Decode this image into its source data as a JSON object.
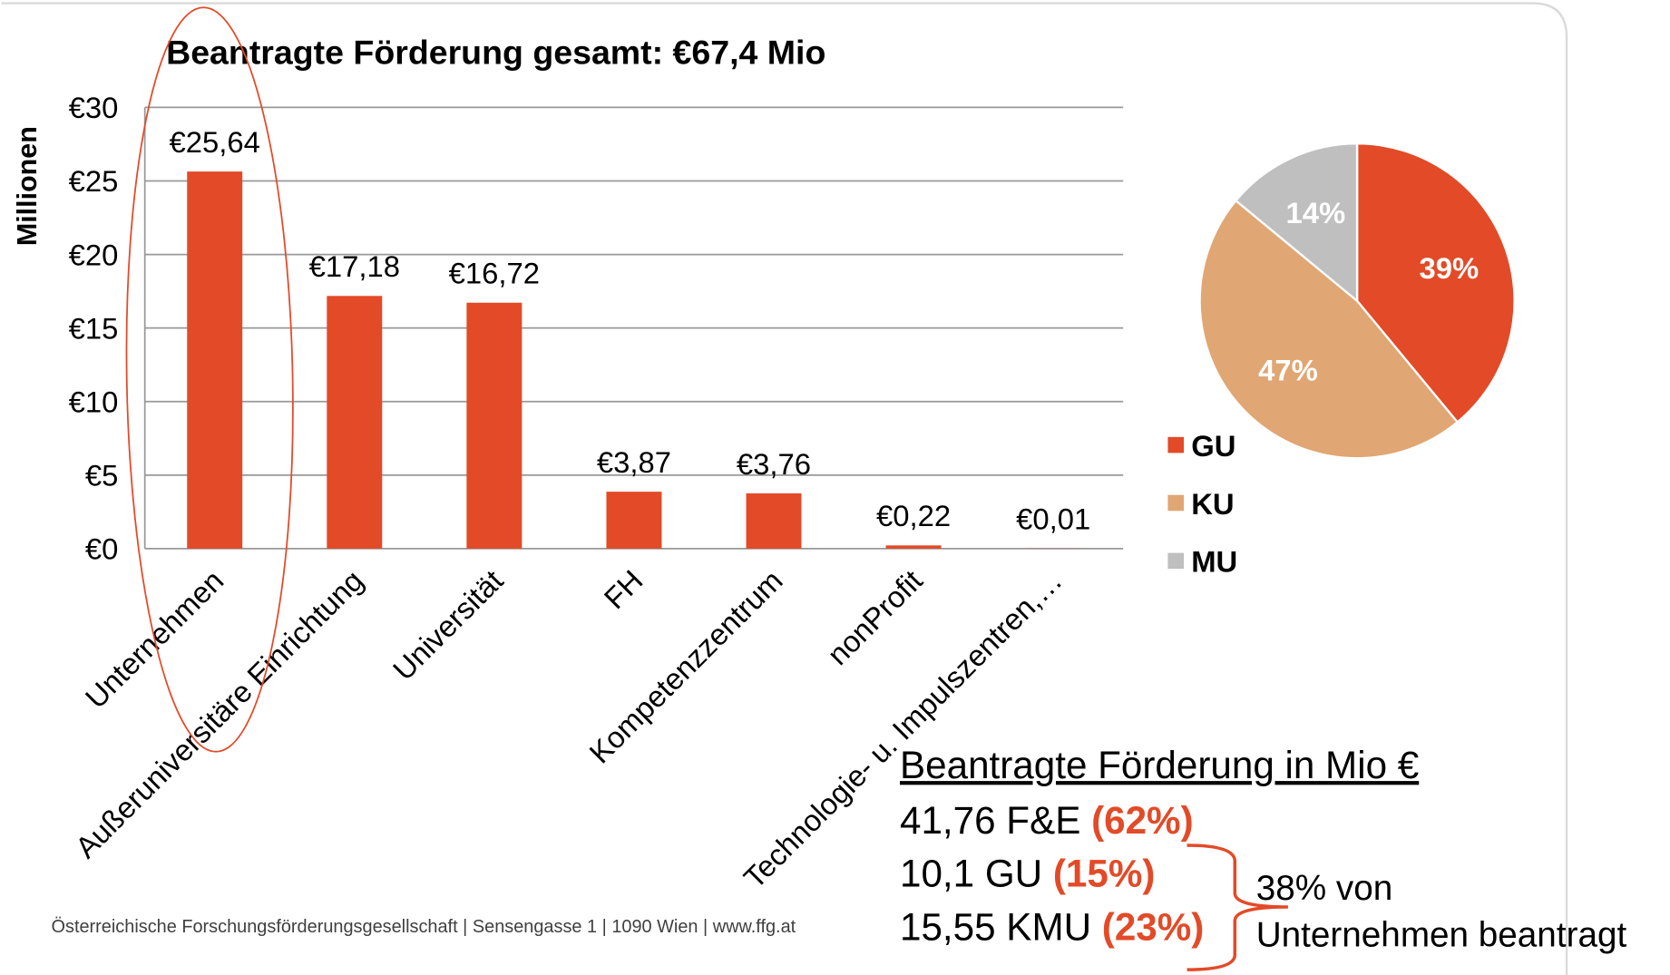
{
  "chart_data": [
    {
      "type": "bar",
      "title": "Beantragte Förderung gesamt: €67,4 Mio",
      "y_label": "Millionen",
      "categories": [
        "Unternehmen",
        "Außeruniversitäre Einrichtung",
        "Universität",
        "FH",
        "Kompetenzzentrum",
        "nonProfit",
        "Technologie- u. Impulszentren,…"
      ],
      "values": [
        25.64,
        17.18,
        16.72,
        3.87,
        3.76,
        0.22,
        0.01
      ],
      "value_labels": [
        "€25,64",
        "€17,18",
        "€16,72",
        "€3,87",
        "€3,76",
        "€0,22",
        "€0,01"
      ],
      "color": "#e34a27",
      "ylim": [
        0,
        30
      ],
      "yticks": [
        {
          "value": 0,
          "label": "€0"
        },
        {
          "value": 5,
          "label": "€5"
        },
        {
          "value": 10,
          "label": "€10"
        },
        {
          "value": 15,
          "label": "€15"
        },
        {
          "value": 20,
          "label": "€20"
        },
        {
          "value": 25,
          "label": "€25"
        },
        {
          "value": 30,
          "label": "€30"
        }
      ],
      "grid": true
    },
    {
      "type": "pie",
      "categories": [
        "GU",
        "KU",
        "MU"
      ],
      "values": [
        39,
        47,
        14
      ],
      "value_labels": [
        "39%",
        "47%",
        "14%"
      ],
      "colors": [
        "#e34a27",
        "#e0a673",
        "#bfbfbf"
      ],
      "legend": "left"
    }
  ],
  "notes": {
    "heading": "Beantragte Förderung in Mio €",
    "lines": [
      {
        "text": "41,76 F&E",
        "pct": "(62%)"
      },
      {
        "text": "10,1 GU",
        "pct": "(15%)"
      },
      {
        "text": "15,55 KMU",
        "pct": "(23%)"
      }
    ],
    "bracket": [
      "38% von",
      "Unternehmen beantragt"
    ]
  },
  "footer": "Österreichische Forschungsförderungsgesellschaft | Sensengasse 1 | 1090 Wien | www.ffg.at"
}
